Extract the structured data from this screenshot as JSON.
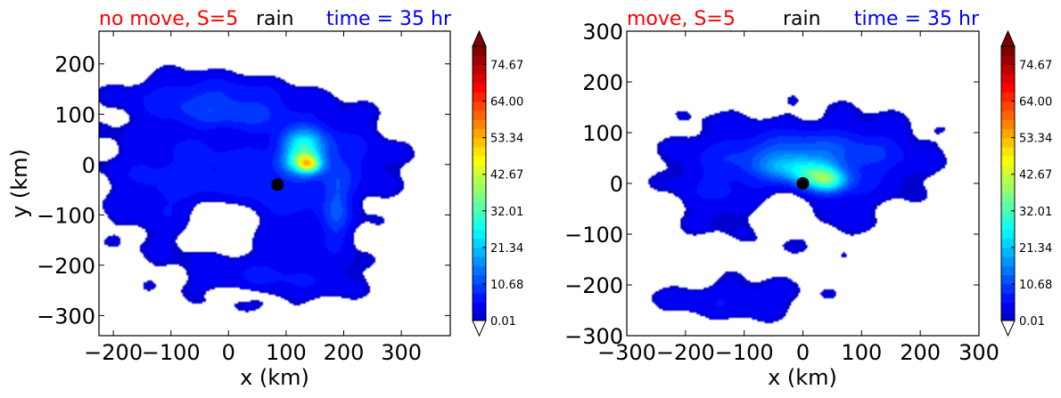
{
  "chart_data": [
    {
      "type": "heatmap",
      "title_left": "no move, S=5",
      "title_center": "rain",
      "title_right": "time = 35 hr",
      "title_colors": {
        "left": "#ff0000",
        "center": "#000000",
        "right": "#0000ff"
      },
      "xlabel": "x (km)",
      "ylabel": "y (km)",
      "xlim": [
        -225,
        385
      ],
      "ylim": [
        -340,
        265
      ],
      "xticks": [
        -200,
        -100,
        0,
        100,
        200,
        300
      ],
      "xtick_labels": [
        "−200",
        "−100",
        "0",
        "100",
        "200",
        "300"
      ],
      "yticks": [
        -300,
        -200,
        -100,
        0,
        100,
        200
      ],
      "ytick_labels": [
        "−300",
        "−200",
        "−100",
        "0",
        "100",
        "200"
      ],
      "center_marker": {
        "x": 85,
        "y": -40
      },
      "colorbar": {
        "ticks": [
          0.01,
          10.68,
          21.34,
          32.01,
          42.67,
          53.34,
          64.0,
          74.67
        ],
        "tick_labels": [
          "0.01",
          "10.68",
          "21.34",
          "32.01",
          "42.67",
          "53.34",
          "64.00",
          "74.67"
        ],
        "range": [
          0.01,
          80
        ],
        "extend": "both"
      },
      "rain_field": {
        "blobs": [
          {
            "x": 60,
            "y": -50,
            "sx": 150,
            "sy": 125,
            "a": 7
          },
          {
            "x": -120,
            "y": -20,
            "sx": 110,
            "sy": 140,
            "a": 5
          },
          {
            "x": 200,
            "y": 20,
            "sx": 100,
            "sy": 85,
            "a": 5
          },
          {
            "x": 80,
            "y": -230,
            "sx": 160,
            "sy": 50,
            "a": 5
          },
          {
            "x": -30,
            "y": 140,
            "sx": 140,
            "sy": 40,
            "a": 7
          },
          {
            "x": 20,
            "y": 100,
            "sx": 120,
            "sy": 30,
            "a": 6
          },
          {
            "x": 130,
            "y": 40,
            "sx": 35,
            "sy": 30,
            "a": 22
          },
          {
            "x": 130,
            "y": 5,
            "sx": 30,
            "sy": 22,
            "a": 25
          },
          {
            "x": 140,
            "y": 0,
            "sx": 18,
            "sy": 16,
            "a": 22
          },
          {
            "x": 190,
            "y": -100,
            "sx": 25,
            "sy": 80,
            "a": 8
          }
        ],
        "holes": [
          {
            "x": 10,
            "y": -260,
            "sx": 45,
            "sy": 12
          },
          {
            "x": -10,
            "y": -120,
            "sx": 60,
            "sy": 50
          }
        ]
      }
    },
    {
      "type": "heatmap",
      "title_left": "move, S=5",
      "title_center": "rain",
      "title_right": "time = 35 hr",
      "title_colors": {
        "left": "#ff0000",
        "center": "#000000",
        "right": "#0000ff"
      },
      "xlabel": "x (km)",
      "ylabel": "",
      "xlim": [
        -300,
        300
      ],
      "ylim": [
        -300,
        300
      ],
      "xticks": [
        -300,
        -200,
        -100,
        0,
        100,
        200,
        300
      ],
      "xtick_labels": [
        "−300",
        "−200",
        "−100",
        "0",
        "100",
        "200",
        "300"
      ],
      "yticks": [
        -300,
        -200,
        -100,
        0,
        100,
        200,
        300
      ],
      "ytick_labels": [
        "−300",
        "−200",
        "−100",
        "0",
        "100",
        "200",
        "300"
      ],
      "center_marker": {
        "x": 0,
        "y": 0
      },
      "colorbar": {
        "ticks": [
          0.01,
          10.68,
          21.34,
          32.01,
          42.67,
          53.34,
          64.0,
          74.67
        ],
        "tick_labels": [
          "0.01",
          "10.68",
          "21.34",
          "32.01",
          "42.67",
          "53.34",
          "64.00",
          "74.67"
        ],
        "range": [
          0.01,
          80
        ],
        "extend": "both"
      },
      "rain_field": {
        "blobs": [
          {
            "x": 20,
            "y": 10,
            "sx": 140,
            "sy": 120,
            "a": 6
          },
          {
            "x": -150,
            "y": 20,
            "sx": 90,
            "sy": 110,
            "a": 5
          },
          {
            "x": 120,
            "y": 60,
            "sx": 110,
            "sy": 60,
            "a": 5
          },
          {
            "x": -120,
            "y": -230,
            "sx": 140,
            "sy": 40,
            "a": 5
          },
          {
            "x": -20,
            "y": 60,
            "sx": 90,
            "sy": 35,
            "a": 8
          },
          {
            "x": 20,
            "y": 15,
            "sx": 40,
            "sy": 28,
            "a": 20
          },
          {
            "x": 45,
            "y": 5,
            "sx": 30,
            "sy": 22,
            "a": 18
          },
          {
            "x": -30,
            "y": 30,
            "sx": 45,
            "sy": 25,
            "a": 10
          }
        ],
        "holes": [
          {
            "x": -140,
            "y": -130,
            "sx": 40,
            "sy": 20
          },
          {
            "x": -30,
            "y": -60,
            "sx": 55,
            "sy": 40
          }
        ]
      }
    }
  ]
}
